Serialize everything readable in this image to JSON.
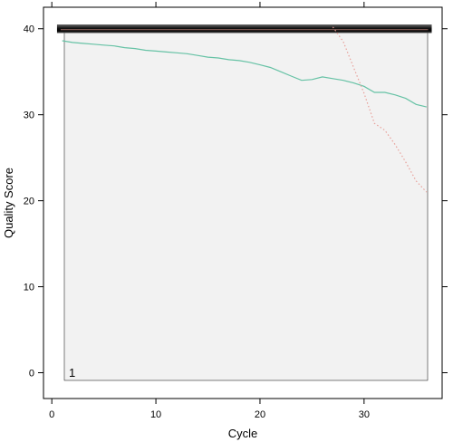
{
  "chart_data": {
    "type": "line",
    "xlabel": "Cycle",
    "ylabel": "Quality Score",
    "panel_label": "1",
    "xlim": [
      -0.8,
      37.5
    ],
    "ylim": [
      -3,
      42.5
    ],
    "x_ticks": [
      0,
      10,
      20,
      30
    ],
    "y_ticks": [
      0,
      10,
      20,
      30,
      40
    ],
    "grid": false,
    "heatmap_band": {
      "y_range": [
        39.5,
        40.5
      ],
      "x_range": [
        1,
        36
      ]
    },
    "series": [
      {
        "color": "#66c2a5",
        "line_style": "solid",
        "x": [
          1,
          2,
          3,
          4,
          5,
          6,
          7,
          8,
          9,
          10,
          11,
          12,
          13,
          14,
          15,
          16,
          17,
          18,
          19,
          20,
          21,
          22,
          23,
          24,
          25,
          26,
          27,
          28,
          29,
          30,
          31,
          32,
          33,
          34,
          35,
          36
        ],
        "y": [
          38.6,
          38.4,
          38.3,
          38.2,
          38.1,
          38.0,
          37.8,
          37.7,
          37.5,
          37.4,
          37.3,
          37.2,
          37.1,
          36.9,
          36.7,
          36.6,
          36.4,
          36.3,
          36.1,
          35.8,
          35.5,
          35.0,
          34.5,
          34.0,
          34.1,
          34.4,
          34.2,
          34.0,
          33.7,
          33.3,
          32.6,
          32.6,
          32.3,
          31.9,
          31.2,
          30.9
        ]
      },
      {
        "color": "#e8a09a",
        "line_style": "dotted",
        "x": [
          27,
          28,
          29,
          30,
          31,
          32,
          33,
          34,
          35,
          36
        ],
        "y": [
          40.2,
          38.5,
          35.5,
          32.5,
          29.0,
          28.2,
          26.5,
          24.5,
          22.3,
          21.0
        ]
      }
    ]
  }
}
